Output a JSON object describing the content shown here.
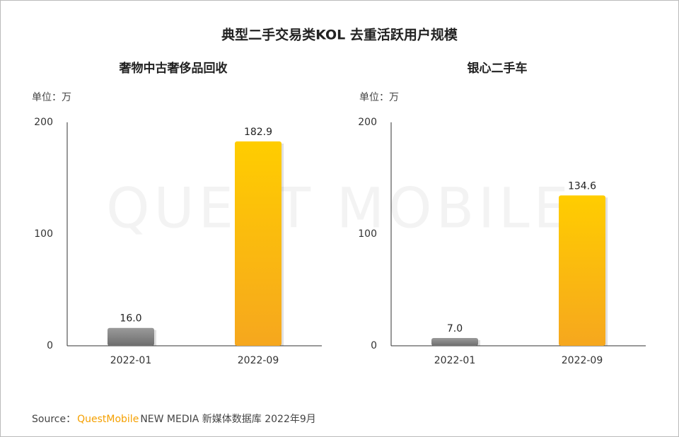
{
  "title": "典型二手交易类KOL 去重活跃用户规模",
  "watermark": "QUEST MOBILE",
  "source": {
    "label": "Source：",
    "brand": "QuestMobile",
    "text": "NEW MEDIA 新媒体数据库 2022年9月"
  },
  "chart_data": [
    {
      "type": "bar",
      "title": "奢物中古奢侈品回收",
      "unit_label": "单位：万",
      "categories": [
        "2022-01",
        "2022-09"
      ],
      "values": [
        16,
        182.9
      ],
      "value_labels": [
        "16.0",
        "182.9"
      ],
      "colors": [
        "#8c8c8c",
        "#fbbf0f"
      ],
      "ylim": [
        0,
        200
      ],
      "yticks": [
        0,
        100,
        200
      ]
    },
    {
      "type": "bar",
      "title": "银心二手车",
      "unit_label": "单位：万",
      "categories": [
        "2022-01",
        "2022-09"
      ],
      "values": [
        7,
        134.6
      ],
      "value_labels": [
        "7.0",
        "134.6"
      ],
      "colors": [
        "#8c8c8c",
        "#fbbf0f"
      ],
      "ylim": [
        0,
        200
      ],
      "yticks": [
        0,
        100,
        200
      ]
    }
  ]
}
